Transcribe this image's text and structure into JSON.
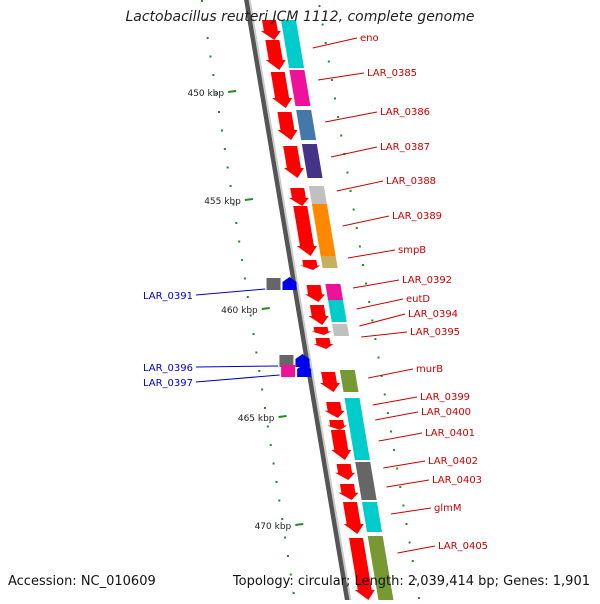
{
  "title": "Lactobacillus reuteri JCM 1112, complete genome",
  "footer": {
    "accession": "Accession: NC_010609",
    "summary": "Topology: circular; Length: 2,039,414 bp; Genes: 1,901"
  },
  "colors": {
    "backbone_dark": "#555555",
    "backbone_light": "#cccccc",
    "gene_red": "#ff0000",
    "gc_dot": "#228b22",
    "label_red": "#cc0000",
    "label_blue": "#0000cc",
    "cyan": "#00cccc",
    "magenta": "#ee1199",
    "steelblue": "#4477aa",
    "slate": "#443388",
    "orange": "#ff8800",
    "khaki": "#c8b060",
    "lightgray": "#c0c0c0",
    "darkgray": "#666666",
    "olive": "#779933",
    "blue": "#0000ee"
  },
  "axis_ticks": [
    {
      "label": "450 kbp"
    },
    {
      "label": "455 kbp"
    },
    {
      "label": "460 kbp"
    },
    {
      "label": "465 kbp"
    },
    {
      "label": "470 kbp"
    }
  ],
  "right_labels": [
    "eno",
    "LAR_0385",
    "LAR_0386",
    "LAR_0387",
    "LAR_0388",
    "LAR_0389",
    "smpB",
    "LAR_0392",
    "eutD",
    "LAR_0394",
    "LAR_0395",
    "murB",
    "LAR_0399",
    "LAR_0400",
    "LAR_0401",
    "LAR_0402",
    "LAR_0403",
    "glmM",
    "LAR_0405"
  ],
  "left_labels": [
    "LAR_0391",
    "LAR_0396",
    "LAR_0397"
  ]
}
